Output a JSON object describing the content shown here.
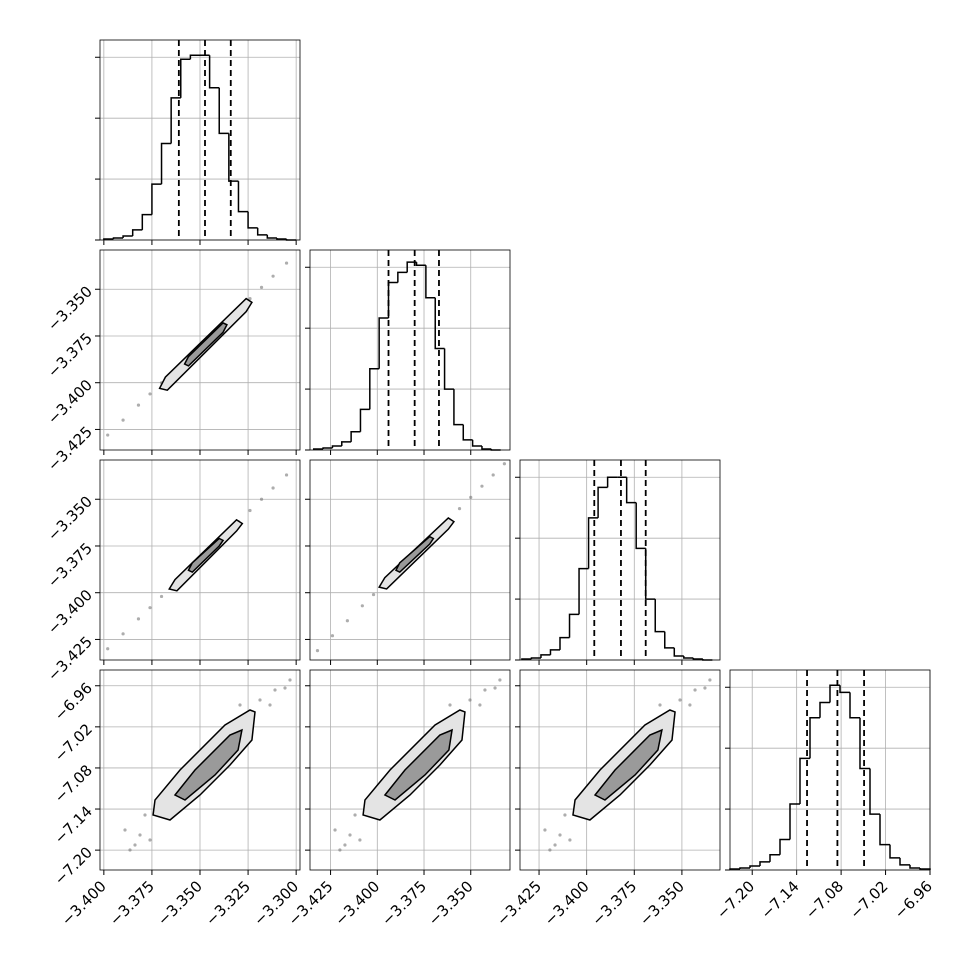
{
  "chart_data": [
    {
      "type": "histogram",
      "color": "#000000",
      "grid": true,
      "bins": [
        -3.4,
        -3.395,
        -3.39,
        -3.385,
        -3.38,
        -3.375,
        -3.37,
        -3.365,
        -3.36,
        -3.355,
        -3.35,
        -3.345,
        -3.34,
        -3.335,
        -3.33,
        -3.325,
        -3.32,
        -3.315,
        -3.31,
        -3.305,
        -3.3
      ],
      "counts": [
        1,
        2,
        4,
        10,
        25,
        55,
        95,
        140,
        178,
        182,
        182,
        150,
        105,
        58,
        28,
        12,
        5,
        2,
        1,
        0
      ],
      "quantiles": [
        -3.361,
        -3.3474,
        -3.334
      ],
      "xlim": [
        -3.402,
        -3.298
      ],
      "xticks": [
        -3.4,
        -3.375,
        -3.35,
        -3.325,
        -3.3
      ],
      "ylim": [
        0,
        197
      ],
      "yticks": [
        0,
        60,
        120,
        180
      ]
    },
    {
      "type": "contour",
      "color": "#000000",
      "grid": true,
      "x": [
        -3.398,
        -3.39,
        -3.382,
        -3.376,
        -3.37,
        -3.33,
        -3.324,
        -3.318,
        -3.312,
        -3.305
      ],
      "y": [
        -3.428,
        -3.42,
        -3.412,
        -3.406,
        -3.4,
        -3.361,
        -3.355,
        -3.349,
        -3.343,
        -3.336
      ],
      "contours": [
        {
          "x": [
            -3.371,
            -3.368,
            -3.326,
            -3.323,
            -3.326,
            -3.367
          ],
          "y": [
            -3.403,
            -3.397,
            -3.355,
            -3.357,
            -3.362,
            -3.404
          ]
        },
        {
          "x": [
            -3.358,
            -3.356,
            -3.338,
            -3.336,
            -3.338,
            -3.356
          ],
          "y": [
            -3.39,
            -3.386,
            -3.368,
            -3.369,
            -3.373,
            -3.391
          ]
        }
      ],
      "xlim": [
        -3.402,
        -3.298
      ],
      "xticks": [
        -3.4,
        -3.375,
        -3.35,
        -3.325,
        -3.3
      ],
      "ylim": [
        -3.436,
        -3.329
      ],
      "yticks": [
        {
          "value": -3.35,
          "label": "−3.350"
        },
        {
          "value": -3.375,
          "label": "−3.375"
        },
        {
          "value": -3.4,
          "label": "−3.400"
        },
        {
          "value": -3.425,
          "label": "−3.425"
        }
      ]
    },
    {
      "type": "histogram",
      "color": "#000000",
      "grid": true,
      "bins": [
        -3.434,
        -3.429,
        -3.424,
        -3.419,
        -3.414,
        -3.409,
        -3.404,
        -3.399,
        -3.394,
        -3.389,
        -3.384,
        -3.379,
        -3.374,
        -3.369,
        -3.364,
        -3.359,
        -3.354,
        -3.349,
        -3.344,
        -3.339,
        -3.334
      ],
      "counts": [
        1,
        2,
        4,
        8,
        18,
        40,
        80,
        130,
        165,
        175,
        185,
        182,
        150,
        100,
        60,
        25,
        10,
        4,
        1,
        0
      ],
      "quantiles": [
        -3.394,
        -3.38,
        -3.367
      ],
      "xlim": [
        -3.436,
        -3.329
      ],
      "xticks": [
        -3.425,
        -3.4,
        -3.375,
        -3.35
      ],
      "ylim": [
        0,
        197
      ],
      "yticks": [
        0,
        60,
        120,
        180
      ]
    },
    {
      "type": "contour",
      "color": "#000000",
      "grid": true,
      "x": [
        -3.398,
        -3.39,
        -3.382,
        -3.376,
        -3.37,
        -3.33,
        -3.324,
        -3.318,
        -3.312,
        -3.305
      ],
      "y": [
        -3.43,
        -3.422,
        -3.414,
        -3.408,
        -3.402,
        -3.362,
        -3.356,
        -3.35,
        -3.344,
        -3.337
      ],
      "contours": [
        {
          "x": [
            -3.366,
            -3.363,
            -3.331,
            -3.328,
            -3.331,
            -3.362
          ],
          "y": [
            -3.398,
            -3.393,
            -3.361,
            -3.363,
            -3.367,
            -3.399
          ]
        },
        {
          "x": [
            -3.356,
            -3.354,
            -3.34,
            -3.338,
            -3.34,
            -3.354
          ],
          "y": [
            -3.388,
            -3.384,
            -3.371,
            -3.372,
            -3.375,
            -3.389
          ]
        }
      ],
      "xlim": [
        -3.402,
        -3.298
      ],
      "xticks": [
        -3.4,
        -3.375,
        -3.35,
        -3.325,
        -3.3
      ],
      "ylim": [
        -3.436,
        -3.329
      ],
      "yticks": [
        {
          "value": -3.35,
          "label": "−3.350"
        },
        {
          "value": -3.375,
          "label": "−3.375"
        },
        {
          "value": -3.4,
          "label": "−3.400"
        },
        {
          "value": -3.425,
          "label": "−3.425"
        }
      ]
    },
    {
      "type": "contour",
      "color": "#000000",
      "grid": true,
      "x": [
        -3.432,
        -3.424,
        -3.416,
        -3.408,
        -3.402,
        -3.356,
        -3.35,
        -3.344,
        -3.338,
        -3.332
      ],
      "y": [
        -3.431,
        -3.423,
        -3.415,
        -3.407,
        -3.401,
        -3.355,
        -3.349,
        -3.343,
        -3.337,
        -3.331
      ],
      "contours": [
        {
          "x": [
            -3.399,
            -3.396,
            -3.362,
            -3.359,
            -3.362,
            -3.395
          ],
          "y": [
            -3.397,
            -3.392,
            -3.36,
            -3.362,
            -3.366,
            -3.398
          ]
        },
        {
          "x": [
            -3.39,
            -3.388,
            -3.372,
            -3.37,
            -3.372,
            -3.388
          ],
          "y": [
            -3.388,
            -3.384,
            -3.37,
            -3.371,
            -3.374,
            -3.389
          ]
        }
      ],
      "xlim": [
        -3.436,
        -3.329
      ],
      "xticks": [
        -3.425,
        -3.4,
        -3.375,
        -3.35
      ],
      "ylim": [
        -3.436,
        -3.329
      ],
      "yticks": [
        -3.35,
        -3.375,
        -3.4,
        -3.425
      ]
    },
    {
      "type": "histogram",
      "color": "#000000",
      "grid": true,
      "bins": [
        -3.434,
        -3.429,
        -3.424,
        -3.419,
        -3.414,
        -3.409,
        -3.404,
        -3.399,
        -3.394,
        -3.389,
        -3.384,
        -3.379,
        -3.374,
        -3.369,
        -3.364,
        -3.359,
        -3.354,
        -3.349,
        -3.344,
        -3.339,
        -3.334
      ],
      "counts": [
        1,
        2,
        5,
        10,
        22,
        45,
        90,
        140,
        170,
        180,
        180,
        155,
        110,
        60,
        28,
        12,
        4,
        2,
        1,
        0
      ],
      "quantiles": [
        -3.396,
        -3.382,
        -3.369
      ],
      "xlim": [
        -3.435,
        -3.33
      ],
      "xticks": [
        -3.425,
        -3.4,
        -3.375,
        -3.35
      ],
      "ylim": [
        0,
        197
      ],
      "yticks": [
        0,
        60,
        120,
        180
      ]
    },
    {
      "type": "contour",
      "color": "#000000",
      "grid": true,
      "x": [
        -3.3864,
        -3.3812,
        -3.389,
        -3.3786,
        -3.3188,
        -3.311,
        -3.3058,
        -3.3136,
        -3.376,
        -3.3292,
        -3.3032,
        -3.3838
      ],
      "y": [
        -7.1998,
        -7.1779,
        -7.1706,
        -7.1487,
        -6.9808,
        -6.9662,
        -6.9633,
        -6.9881,
        -7.1852,
        -6.9881,
        -6.9516,
        -7.1925
      ],
      "contours": [
        {
          "x": [
            -3.3744,
            -3.3734,
            -3.3604,
            -3.337,
            -3.324,
            -3.3214,
            -3.323,
            -3.3344,
            -3.35,
            -3.3656
          ],
          "y": [
            -7.1487,
            -7.1268,
            -7.083,
            -7.0173,
            -6.9954,
            -6.9983,
            -7.0392,
            -7.0757,
            -7.1195,
            -7.156
          ]
        },
        {
          "x": [
            -3.363,
            -3.3526,
            -3.3344,
            -3.3282,
            -3.3302,
            -3.3422,
            -3.3578
          ],
          "y": [
            -7.1195,
            -7.083,
            -7.0319,
            -7.0246,
            -7.0538,
            -7.0903,
            -7.1268
          ]
        }
      ],
      "xlim": [
        -3.402,
        -3.298
      ],
      "xticks": [
        {
          "value": -3.4,
          "label": "−3.400"
        },
        {
          "value": -3.375,
          "label": "−3.375"
        },
        {
          "value": -3.35,
          "label": "−3.350"
        },
        {
          "value": -3.325,
          "label": "−3.325"
        },
        {
          "value": -3.3,
          "label": "−3.300"
        }
      ],
      "ylim": [
        -7.229,
        -6.937
      ],
      "yticks": [
        {
          "value": -6.96,
          "label": "−6.96"
        },
        {
          "value": -7.02,
          "label": "−7.02"
        },
        {
          "value": -7.08,
          "label": "−7.08"
        },
        {
          "value": -7.14,
          "label": "−7.14"
        },
        {
          "value": -7.2,
          "label": "−7.20"
        }
      ]
    },
    {
      "type": "contour",
      "color": "#000000",
      "grid": true,
      "x": [
        -3.42,
        -3.4146,
        -3.4226,
        -3.4119,
        -3.3504,
        -3.3424,
        -3.337,
        -3.3451,
        -3.4093,
        -3.3611,
        -3.3344,
        -3.4173
      ],
      "y": [
        -7.1998,
        -7.1779,
        -7.1706,
        -7.1487,
        -6.9808,
        -6.9662,
        -6.9633,
        -6.9881,
        -7.1852,
        -6.9881,
        -6.9516,
        -7.1925
      ],
      "contours": [
        {
          "x": [
            -3.4076,
            -3.4066,
            -3.3932,
            -3.3691,
            -3.3558,
            -3.3531,
            -3.3547,
            -3.3665,
            -3.3825,
            -3.3986
          ],
          "y": [
            -7.1487,
            -7.1268,
            -7.083,
            -7.0173,
            -6.9954,
            -6.9983,
            -7.0392,
            -7.0757,
            -7.1195,
            -7.156
          ]
        },
        {
          "x": [
            -3.3959,
            -3.3852,
            -3.3665,
            -3.36,
            -3.3617,
            -3.3745,
            -3.3905
          ],
          "y": [
            -7.1195,
            -7.083,
            -7.0319,
            -7.0246,
            -7.0538,
            -7.0903,
            -7.1268
          ]
        }
      ],
      "xlim": [
        -3.436,
        -3.329
      ],
      "xticks": [
        {
          "value": -3.425,
          "label": "−3.425"
        },
        {
          "value": -3.4,
          "label": "−3.400"
        },
        {
          "value": -3.375,
          "label": "−3.375"
        },
        {
          "value": -3.35,
          "label": "−3.350"
        }
      ],
      "ylim": [
        -7.229,
        -6.937
      ],
      "yticks": [
        -6.96,
        -7.02,
        -7.08,
        -7.14,
        -7.2
      ]
    },
    {
      "type": "contour",
      "color": "#000000",
      "grid": true,
      "x": [
        -3.4193,
        -3.414,
        -3.4219,
        -3.4114,
        -3.351,
        -3.3431,
        -3.3379,
        -3.3458,
        -3.4088,
        -3.3615,
        -3.3353,
        -3.4166
      ],
      "y": [
        -7.1998,
        -7.1779,
        -7.1706,
        -7.1487,
        -6.9808,
        -6.9662,
        -6.9633,
        -6.9881,
        -7.1852,
        -6.9881,
        -6.9516,
        -7.1925
      ],
      "contours": [
        {
          "x": [
            -3.4072,
            -3.4061,
            -3.393,
            -3.3694,
            -3.3563,
            -3.3536,
            -3.3552,
            -3.3668,
            -3.3825,
            -3.3983
          ],
          "y": [
            -7.1487,
            -7.1268,
            -7.083,
            -7.0173,
            -6.9954,
            -6.9983,
            -7.0392,
            -7.0757,
            -7.1195,
            -7.156
          ]
        },
        {
          "x": [
            -3.3956,
            -3.3851,
            -3.3668,
            -3.3605,
            -3.3626,
            -3.3746,
            -3.3904
          ],
          "y": [
            -7.1195,
            -7.083,
            -7.0319,
            -7.0246,
            -7.0538,
            -7.0903,
            -7.1268
          ]
        }
      ],
      "xlim": [
        -3.435,
        -3.33
      ],
      "xticks": [
        {
          "value": -3.425,
          "label": "−3.425"
        },
        {
          "value": -3.4,
          "label": "−3.400"
        },
        {
          "value": -3.375,
          "label": "−3.375"
        },
        {
          "value": -3.35,
          "label": "−3.350"
        }
      ],
      "ylim": [
        -7.229,
        -6.937
      ],
      "yticks": [
        -6.96,
        -7.02,
        -7.08,
        -7.14,
        -7.2
      ]
    },
    {
      "type": "histogram",
      "color": "#000000",
      "grid": true,
      "bins": [
        -7.23,
        -7.2165,
        -7.203,
        -7.1895,
        -7.176,
        -7.1625,
        -7.149,
        -7.1355,
        -7.122,
        -7.1085,
        -7.095,
        -7.0815,
        -7.068,
        -7.0545,
        -7.041,
        -7.0275,
        -7.014,
        -7.0005,
        -6.987,
        -6.9735,
        -6.96
      ],
      "counts": [
        1,
        2,
        4,
        8,
        15,
        30,
        65,
        110,
        150,
        165,
        182,
        175,
        150,
        100,
        55,
        25,
        12,
        5,
        2,
        1
      ],
      "quantiles": [
        -7.126,
        -7.085,
        -7.049
      ],
      "xlim": [
        -7.23,
        -6.96
      ],
      "xticks": [
        {
          "value": -7.2,
          "label": "−7.20"
        },
        {
          "value": -7.14,
          "label": "−7.14"
        },
        {
          "value": -7.08,
          "label": "−7.08"
        },
        {
          "value": -7.02,
          "label": "−7.02"
        },
        {
          "value": -6.96,
          "label": "−6.96"
        }
      ],
      "ylim": [
        0,
        197
      ],
      "yticks": [
        0,
        60,
        120,
        180
      ]
    }
  ]
}
